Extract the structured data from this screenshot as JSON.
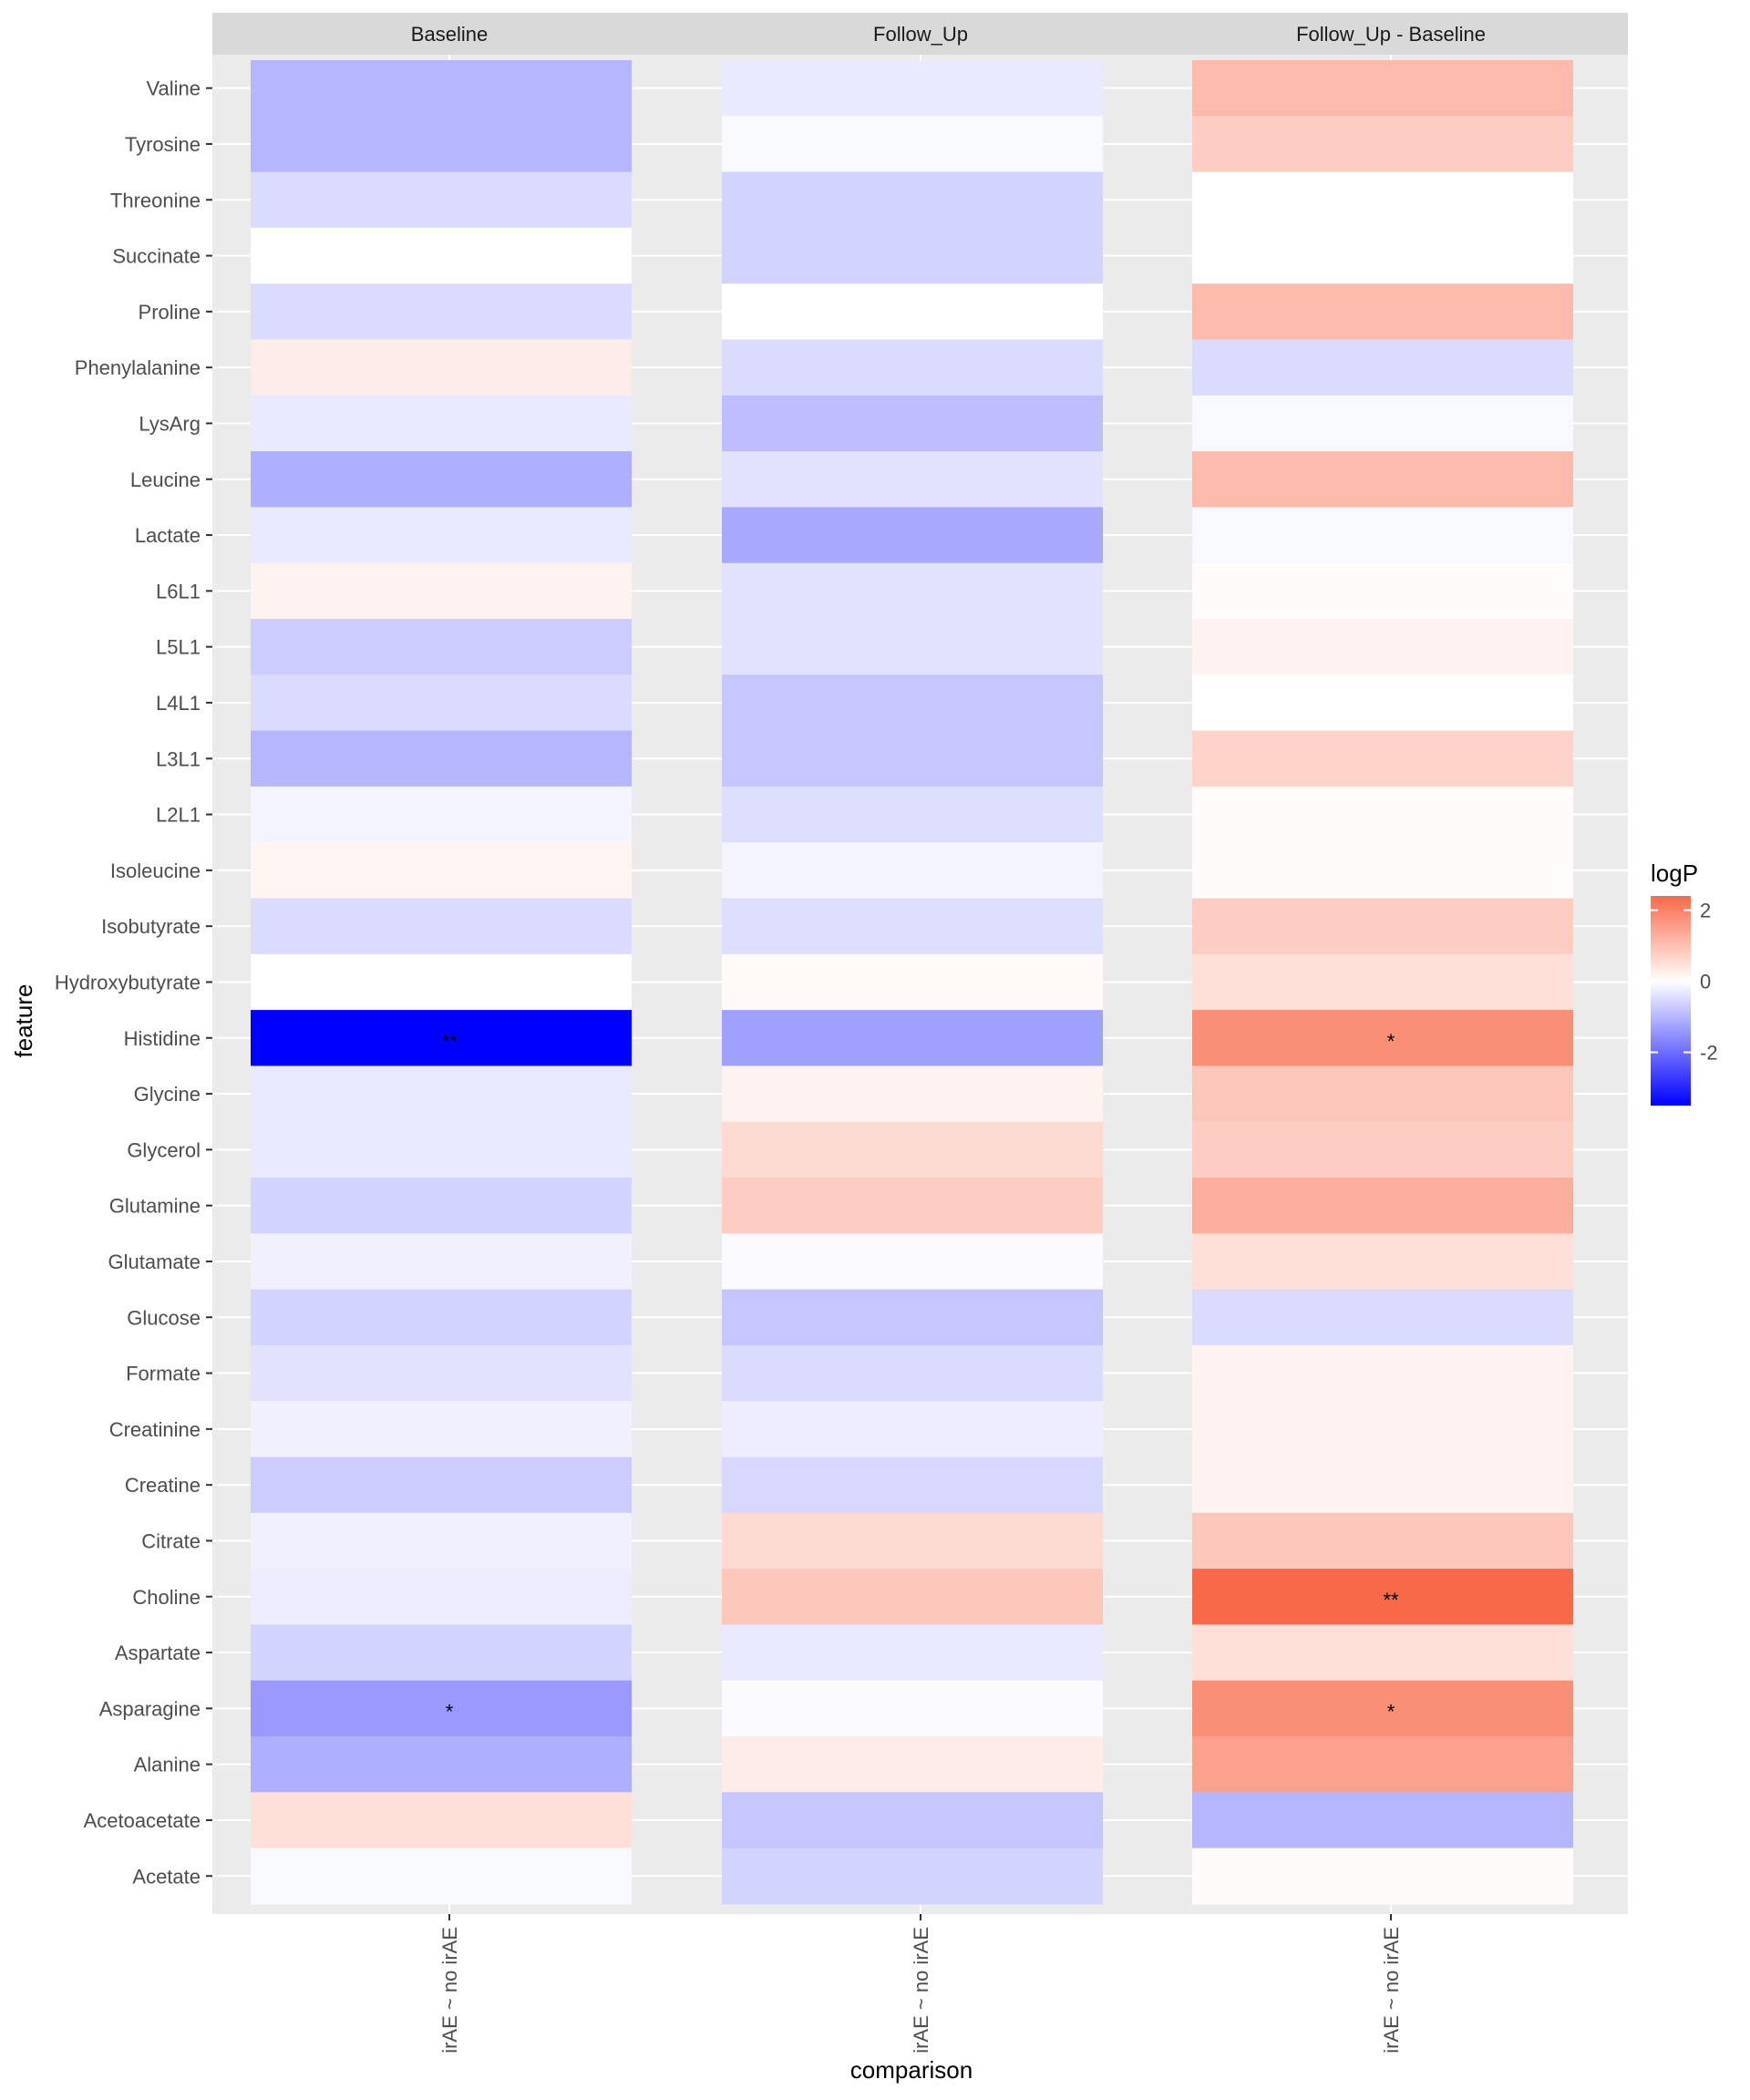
{
  "chart_data": {
    "type": "heatmap",
    "xlabel": "comparison",
    "ylabel": "feature",
    "facets": [
      "Baseline",
      "Follow_Up",
      "Follow_Up - Baseline"
    ],
    "x_categories": [
      "irAE ~ no irAE"
    ],
    "features": [
      "Valine",
      "Tyrosine",
      "Threonine",
      "Succinate",
      "Proline",
      "Phenylalanine",
      "LysArg",
      "Leucine",
      "Lactate",
      "L6L1",
      "L5L1",
      "L4L1",
      "L3L1",
      "L2L1",
      "Isoleucine",
      "Isobutyrate",
      "Hydroxybutyrate",
      "Histidine",
      "Glycine",
      "Glycerol",
      "Glutamine",
      "Glutamate",
      "Glucose",
      "Formate",
      "Creatinine",
      "Creatine",
      "Citrate",
      "Choline",
      "Aspartate",
      "Asparagine",
      "Alanine",
      "Acetoacetate",
      "Acetate"
    ],
    "values": {
      "Baseline": [
        -1.0,
        -1.0,
        -0.5,
        0.0,
        -0.5,
        0.3,
        -0.3,
        -1.1,
        -0.3,
        0.2,
        -0.7,
        -0.5,
        -1.0,
        -0.15,
        0.15,
        -0.5,
        0.0,
        -3.5,
        -0.3,
        -0.3,
        -0.6,
        -0.2,
        -0.6,
        -0.4,
        -0.2,
        -0.7,
        -0.2,
        -0.25,
        -0.6,
        -1.4,
        -1.1,
        0.5,
        -0.1
      ],
      "Follow_Up": [
        -0.3,
        -0.1,
        -0.6,
        -0.6,
        0.0,
        -0.5,
        -0.9,
        -0.4,
        -1.2,
        -0.4,
        -0.4,
        -0.8,
        -0.8,
        -0.45,
        -0.15,
        -0.45,
        0.1,
        -1.3,
        0.2,
        0.6,
        0.8,
        -0.05,
        -0.8,
        -0.5,
        -0.25,
        -0.55,
        0.6,
        0.9,
        -0.3,
        -0.05,
        0.3,
        -0.8,
        -0.6
      ],
      "Follow_Up - Baseline": [
        1.1,
        0.8,
        0.0,
        0.0,
        1.1,
        -0.5,
        -0.1,
        1.1,
        -0.1,
        0.05,
        0.2,
        0.0,
        0.7,
        0.05,
        0.05,
        0.8,
        0.5,
        1.8,
        0.9,
        0.8,
        1.3,
        0.5,
        -0.5,
        0.2,
        0.2,
        0.2,
        0.9,
        2.4,
        0.5,
        1.8,
        1.5,
        -1.0,
        0.05
      ]
    },
    "significance": {
      "Baseline": {
        "Histidine": "**",
        "Asparagine": "*"
      },
      "Follow_Up": {},
      "Follow_Up - Baseline": {
        "Histidine": "*",
        "Choline": "**",
        "Asparagine": "*"
      }
    },
    "legend": {
      "title": "logP",
      "ticks": [
        2,
        0,
        -2
      ],
      "tick_labels": [
        "2",
        "0",
        "-2"
      ],
      "range": [
        -3.5,
        2.4
      ],
      "low_color": "#0000ff",
      "mid_color": "#ffffff",
      "high_color": "#f8694a",
      "placement": "right"
    },
    "colors": {
      "panel_bg": "#ebebeb",
      "strip_bg": "#d9d9d9",
      "grid": "#ffffff",
      "text": "#4d4d4d"
    }
  }
}
